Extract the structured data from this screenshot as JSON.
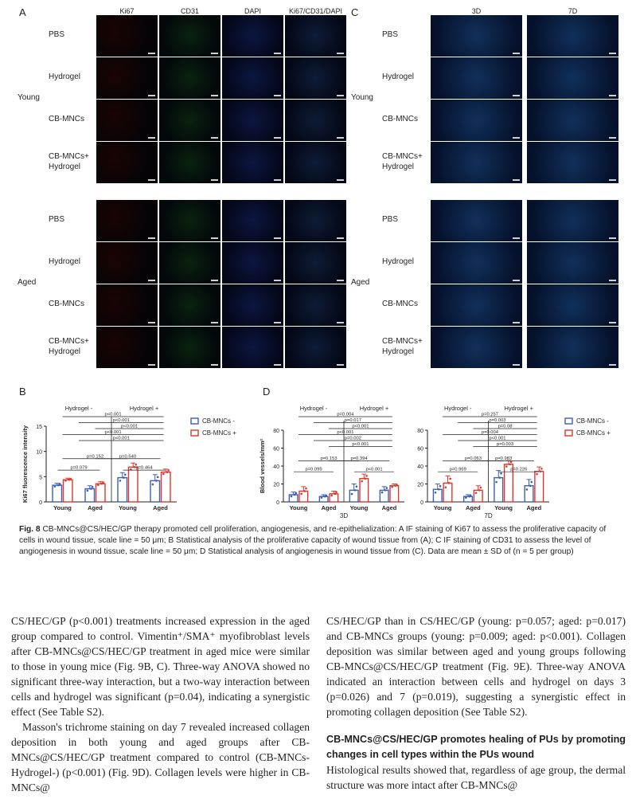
{
  "figure": {
    "panelA": {
      "letter": "A",
      "columns": [
        "Ki67",
        "CD31",
        "DAPI",
        "Ki67/CD31/DAPI"
      ],
      "groups": [
        "Young",
        "Aged"
      ],
      "rows": [
        "PBS",
        "Hydrogel",
        "CB-MNCs",
        "CB-MNCs+\nHydrogel"
      ]
    },
    "panelC": {
      "letter": "C",
      "columns": [
        "3D",
        "7D"
      ],
      "groups": [
        "Young",
        "Aged"
      ],
      "rows": [
        "PBS",
        "Hydrogel",
        "CB-MNCs",
        "CB-MNCs+\nHydrogel"
      ]
    }
  },
  "chart_data": [
    {
      "panel": "B",
      "type": "bar",
      "ylabel": "Ki67 fluorescence intensity",
      "ylim": [
        0,
        15
      ],
      "yticks": [
        0,
        5,
        10,
        15
      ],
      "categories": [
        "Young",
        "Aged",
        "Young",
        "Aged"
      ],
      "group_labels": [
        "Hydrogel -",
        "Hydrogel +"
      ],
      "series": [
        {
          "name": "CB-MNCs -",
          "color": "#3a5fb5",
          "values": [
            3.3,
            2.6,
            4.8,
            4.2
          ],
          "errors": [
            0.4,
            0.6,
            1.0,
            1.2
          ]
        },
        {
          "name": "CB-MNCs +",
          "color": "#e0352b",
          "values": [
            4.4,
            3.6,
            6.9,
            5.9
          ],
          "errors": [
            0.3,
            0.4,
            0.8,
            0.6
          ]
        }
      ],
      "annotations": [
        "p=0.079",
        "p=0.152",
        "p=0.540",
        "p=0.464",
        "p<0.001",
        "p<0.001",
        "p<0.001",
        "p<0.001",
        "p<0.001"
      ]
    },
    {
      "panel": "D-3D",
      "type": "bar",
      "ylabel": "Blood vessels/mm²",
      "xlabel": "3D",
      "ylim": [
        0,
        80
      ],
      "yticks": [
        0,
        20,
        40,
        60,
        80
      ],
      "categories": [
        "Young",
        "Aged",
        "Young",
        "Aged"
      ],
      "group_labels": [
        "Hydrogel -",
        "Hydrogel +"
      ],
      "series": [
        {
          "name": "CB-MNCs -",
          "color": "#3a5fb5",
          "values": [
            8,
            6,
            13,
            13
          ],
          "errors": [
            3,
            2,
            7,
            4
          ]
        },
        {
          "name": "CB-MNCs +",
          "color": "#e0352b",
          "values": [
            12,
            9,
            26,
            18
          ],
          "errors": [
            5,
            3,
            5,
            2
          ]
        }
      ],
      "annotations": [
        "p=0.099",
        "p=0.153",
        "p=0.394",
        "p<0.001",
        "p=0.004",
        "p=0.017",
        "p<0.001",
        "p<0.001",
        "p=0.002",
        "p<0.001"
      ]
    },
    {
      "panel": "D-7D",
      "type": "bar",
      "xlabel": "7D",
      "ylim": [
        0,
        80
      ],
      "yticks": [
        0,
        20,
        40,
        60,
        80
      ],
      "categories": [
        "Young",
        "Aged",
        "Young",
        "Aged"
      ],
      "group_labels": [
        "Hydrogel -",
        "Hydrogel +"
      ],
      "series": [
        {
          "name": "CB-MNCs -",
          "color": "#3a5fb5",
          "values": [
            14,
            6,
            27,
            18
          ],
          "errors": [
            6,
            2,
            8,
            7
          ]
        },
        {
          "name": "CB-MNCs +",
          "color": "#e0352b",
          "values": [
            21,
            13,
            42,
            34
          ],
          "errors": [
            8,
            5,
            4,
            5
          ]
        }
      ],
      "annotations": [
        "p=0.969",
        "p=0.063",
        "p=0.983",
        "p=0.226",
        "p=0.257",
        "p=0.003",
        "p=0.08",
        "p=0.004",
        "p<0.001",
        "p=0.003"
      ]
    }
  ],
  "panel_letters": {
    "B": "B",
    "D": "D"
  },
  "legend": {
    "neg": "CB-MNCs -",
    "pos": "CB-MNCs +"
  },
  "caption": {
    "label": "Fig. 8",
    "text": "CB-MNCs@CS/HEC/GP therapy promoted cell proliferation, angiogenesis, and re-epithelialization: A IF staining of Ki67 to assess the proliferative capacity of cells in wound tissue, scale line = 50 μm; B Statistical analysis of the proliferative capacity of wound tissue from (A); C IF staining of CD31 to assess the level of angiogenesis in wound tissue, scale line = 50 μm; D Statistical analysis of angiogenesis in wound tissue from (C). Data are mean ± SD of (n = 5 per group)"
  },
  "body": {
    "left": [
      "CS/HEC/GP (p<0.001) treatments increased expression in the aged group compared to control. Vimentin⁺/SMA⁺ myofibroblast levels after CB-MNCs@CS/HEC/GP treatment in aged mice were similar to those in young mice (Fig. 9B, C). Three-way ANOVA showed no significant three-way interaction, but a two-way interaction between cells and hydrogel was significant (p=0.04), indicating a synergistic effect (See Table S2).",
      "Masson's trichrome staining on day 7 revealed increased collagen deposition in both young and aged groups after CB-MNCs@CS/HEC/GP treatment compared to control (CB-MNCs-Hydrogel-) (p<0.001) (Fig. 9D). Collagen levels were higher in CB-MNCs@"
    ],
    "right": [
      "CS/HEC/GP than in CS/HEC/GP (young: p=0.057; aged: p=0.017) and CB-MNCs groups (young: p=0.009; aged: p<0.001). Collagen deposition was similar between aged and young groups following CB-MNCs@CS/HEC/GP treatment (Fig. 9E). Three-way ANOVA indicated an interaction between cells and hydrogel on days 3 (p=0.026) and 7 (p=0.019), suggesting a synergistic effect in promoting collagen deposition (See Table S2)."
    ],
    "heading": "CB-MNCs@CS/HEC/GP promotes healing of PUs by promoting changes in cell types within the PUs wound",
    "right_after": "Histological results showed that, regardless of age group, the dermal structure was more intact after CB-MNCs@"
  }
}
